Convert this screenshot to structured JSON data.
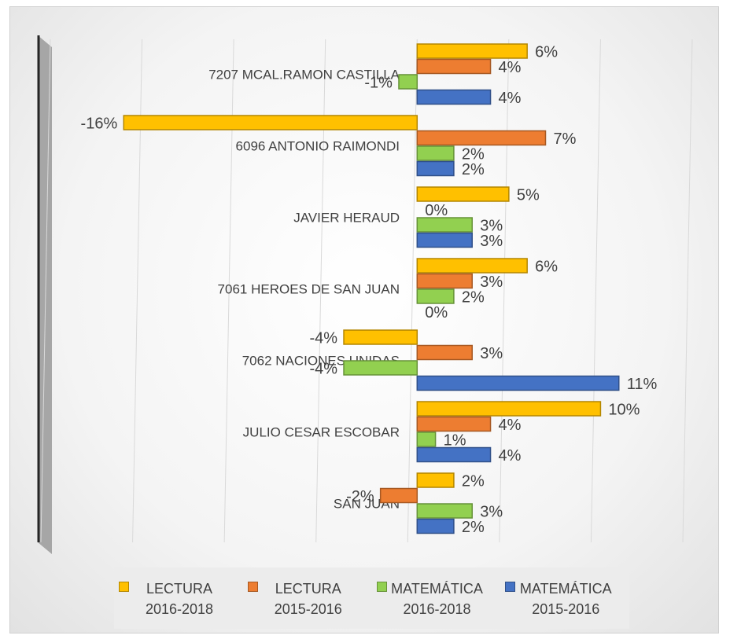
{
  "chart_data": {
    "type": "bar",
    "orientation": "horizontal",
    "categories": [
      "7207 MCAL.RAMON CASTILLA",
      "6096 ANTONIO RAIMONDI",
      "JAVIER HERAUD",
      "7061 HEROES DE SAN JUAN",
      "7062 NACIONES UNIDAS",
      "JULIO CESAR ESCOBAR",
      "SAN JUAN"
    ],
    "series": [
      {
        "name": "LECTURA 2016-2018",
        "color": "#ffc000",
        "values": [
          6,
          -16,
          5,
          6,
          -4,
          10,
          2
        ],
        "value_labels": [
          "6%",
          "-16%",
          "5%",
          "6%",
          "-4%",
          "10%",
          "2%"
        ]
      },
      {
        "name": "LECTURA 2015-2016",
        "color": "#ed7d31",
        "values": [
          4,
          7,
          0,
          3,
          3,
          4,
          -2
        ],
        "value_labels": [
          "4%",
          "7%",
          "0%",
          "3%",
          "3%",
          "4%",
          "-2%"
        ]
      },
      {
        "name": "MATEMÁTICA 2016-2018",
        "color": "#92d050",
        "values": [
          -1,
          2,
          3,
          2,
          -4,
          1,
          3
        ],
        "value_labels": [
          "-1%",
          "2%",
          "3%",
          "2%",
          "-4%",
          "1%",
          "3%"
        ]
      },
      {
        "name": "MATEMÁTICA 2015-2016",
        "color": "#4472c4",
        "values": [
          4,
          2,
          3,
          0,
          11,
          4,
          2
        ],
        "value_labels": [
          "4%",
          "2%",
          "3%",
          "0%",
          "11%",
          "4%",
          "2%"
        ]
      }
    ],
    "xlim": [
      -20,
      15
    ],
    "xticks": [
      -20,
      -15,
      -10,
      -5,
      0,
      5,
      10,
      15
    ],
    "grid": true,
    "legend": "bottom"
  }
}
